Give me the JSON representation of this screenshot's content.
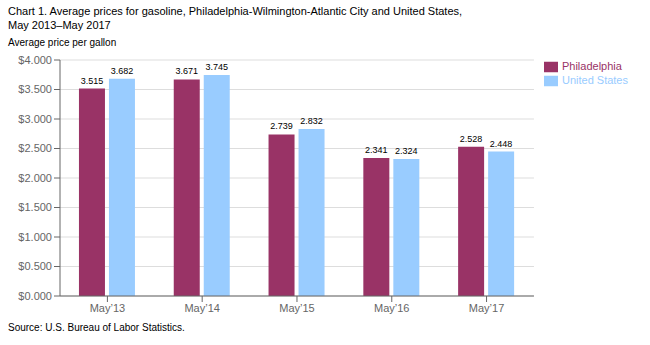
{
  "chart_data": {
    "type": "bar",
    "title": "Chart 1. Average prices for gasoline, Philadelphia-Wilmington-Atlantic City and United States,",
    "subtitle": "May 2013–May 2017",
    "ylabel": "Average price per gallon",
    "annotations": [
      "Source: U.S. Bureau of Labor Statistics."
    ],
    "categories": [
      "May’13",
      "May’14",
      "May’15",
      "May’16",
      "May’17"
    ],
    "series": [
      {
        "name": "Philadelphia",
        "color": "#993366",
        "values": [
          3.515,
          3.671,
          2.739,
          2.341,
          2.528
        ]
      },
      {
        "name": "United States",
        "color": "#99CCFF",
        "values": [
          3.682,
          3.745,
          2.832,
          2.324,
          2.448
        ]
      }
    ],
    "ylim": [
      0.0,
      4.0
    ],
    "yticks": [
      {
        "value": 0.0,
        "label": "$0.000"
      },
      {
        "value": 0.5,
        "label": "$0.500"
      },
      {
        "value": 1.0,
        "label": "$1.000"
      },
      {
        "value": 1.5,
        "label": "$1.500"
      },
      {
        "value": 2.0,
        "label": "$2.000"
      },
      {
        "value": 2.5,
        "label": "$2.500"
      },
      {
        "value": 3.0,
        "label": "$3.000"
      },
      {
        "value": 3.5,
        "label": "$3.500"
      },
      {
        "value": 4.0,
        "label": "$4.000"
      }
    ],
    "grid": true,
    "legend": "upper right",
    "data_labels": true
  }
}
